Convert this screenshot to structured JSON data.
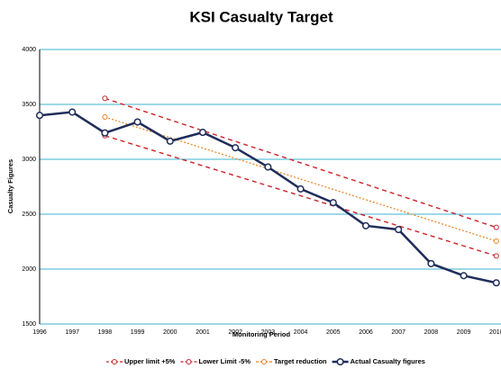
{
  "chart_data": {
    "type": "line",
    "title": "KSI Casualty Target",
    "x_label": "Monitoring Period",
    "y_label": "Casualty Figures",
    "categories": [
      "1996",
      "1997",
      "1998",
      "1999",
      "2000",
      "2001",
      "2002",
      "2003",
      "2004",
      "2005",
      "2006",
      "2007",
      "2008",
      "2009",
      "2010"
    ],
    "ylim": [
      1500,
      4000
    ],
    "yticks": [
      1500,
      2000,
      2500,
      3000,
      3500,
      4000
    ],
    "grid": true,
    "legend": "bottom",
    "series": [
      {
        "name": "Upper limit +5%",
        "color": "#cc2229",
        "dash": "dashed",
        "markers": "ends",
        "values": [
          null,
          null,
          3555,
          3457,
          3359,
          3261,
          3163,
          3066,
          2968,
          2870,
          2772,
          2674,
          2576,
          2478,
          2380
        ]
      },
      {
        "name": "Lower Limit -5%",
        "color": "#cc2229",
        "dash": "dashed",
        "markers": "ends",
        "values": [
          null,
          null,
          3215,
          3124,
          3033,
          2941,
          2850,
          2759,
          2668,
          2576,
          2485,
          2394,
          2303,
          2211,
          2120
        ]
      },
      {
        "name": "Target reduction",
        "color": "#e8801e",
        "dash": "dotted",
        "markers": "ends",
        "values": [
          null,
          null,
          3385,
          3291,
          3197,
          3102,
          3008,
          2914,
          2820,
          2726,
          2632,
          2538,
          2443,
          2349,
          2255
        ]
      },
      {
        "name": "Actual Casualty figures",
        "color": "#1f2d5a",
        "dash": "solid",
        "markers": "all",
        "values": [
          3400,
          3430,
          3240,
          3340,
          3165,
          3245,
          3105,
          2930,
          2730,
          2605,
          2395,
          2360,
          2050,
          1940,
          1875
        ]
      }
    ]
  }
}
